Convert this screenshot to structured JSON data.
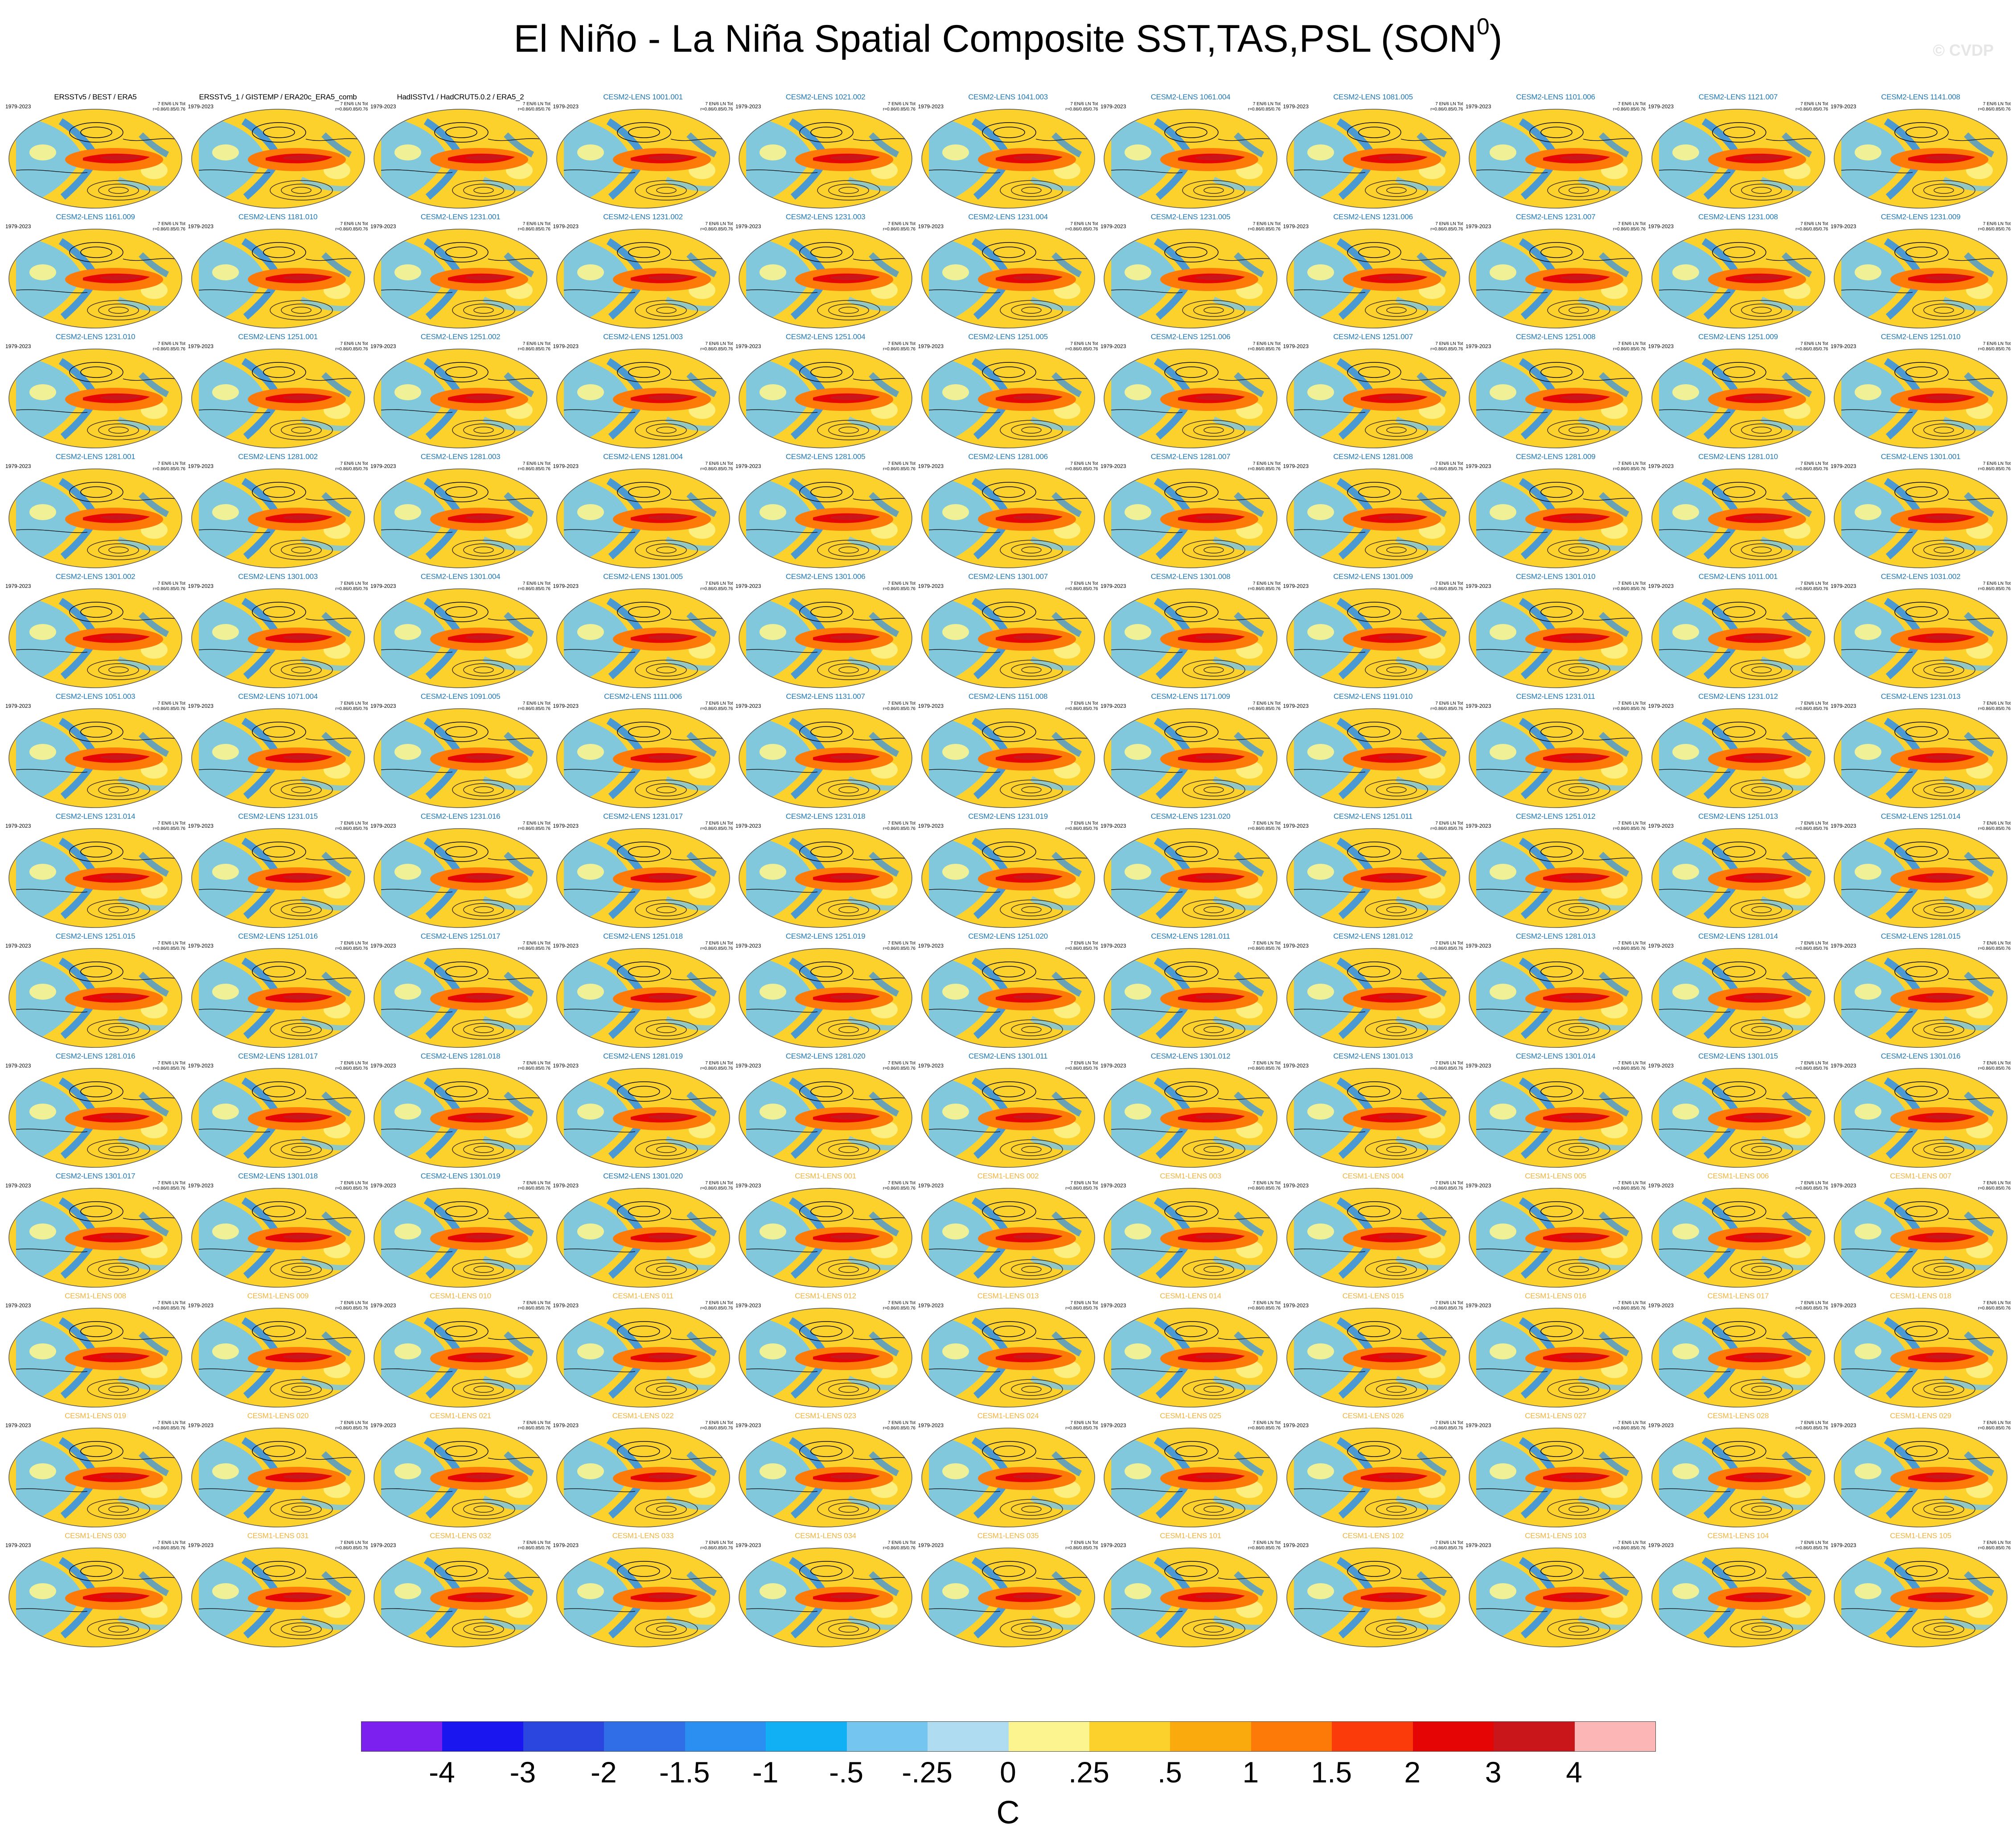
{
  "title": {
    "main": "El Niño - La Niña Spatial Composite SST,TAS,PSL (SON",
    "superscript": "0",
    "close": ")"
  },
  "watermark": "© CVDP",
  "years": "1979-2023",
  "panel_stat_line1": "7 EN/6 LN Tot",
  "panel_stat_line2": "r=0.86/0.85/0.76",
  "colors": {
    "title_obs": "#000000",
    "title_cesm2": "#1f77b4",
    "title_cesm1": "#f2b33d"
  },
  "panels": [
    {
      "title": "ERSSTv5 / BEST / ERA5",
      "group": "obs"
    },
    {
      "title": "ERSSTv5_1 / GISTEMP / ERA20c_ERA5_comb",
      "group": "obs"
    },
    {
      "title": "HadISSTv1 / HadCRUT5.0.2 / ERA5_2",
      "group": "obs"
    },
    {
      "title": "CESM2-LENS 1001.001",
      "group": "cesm2"
    },
    {
      "title": "CESM2-LENS 1021.002",
      "group": "cesm2"
    },
    {
      "title": "CESM2-LENS 1041.003",
      "group": "cesm2"
    },
    {
      "title": "CESM2-LENS 1061.004",
      "group": "cesm2"
    },
    {
      "title": "CESM2-LENS 1081.005",
      "group": "cesm2"
    },
    {
      "title": "CESM2-LENS 1101.006",
      "group": "cesm2"
    },
    {
      "title": "CESM2-LENS 1121.007",
      "group": "cesm2"
    },
    {
      "title": "CESM2-LENS 1141.008",
      "group": "cesm2"
    },
    {
      "title": "CESM2-LENS 1161.009",
      "group": "cesm2"
    },
    {
      "title": "CESM2-LENS 1181.010",
      "group": "cesm2"
    },
    {
      "title": "CESM2-LENS 1231.001",
      "group": "cesm2"
    },
    {
      "title": "CESM2-LENS 1231.002",
      "group": "cesm2"
    },
    {
      "title": "CESM2-LENS 1231.003",
      "group": "cesm2"
    },
    {
      "title": "CESM2-LENS 1231.004",
      "group": "cesm2"
    },
    {
      "title": "CESM2-LENS 1231.005",
      "group": "cesm2"
    },
    {
      "title": "CESM2-LENS 1231.006",
      "group": "cesm2"
    },
    {
      "title": "CESM2-LENS 1231.007",
      "group": "cesm2"
    },
    {
      "title": "CESM2-LENS 1231.008",
      "group": "cesm2"
    },
    {
      "title": "CESM2-LENS 1231.009",
      "group": "cesm2"
    },
    {
      "title": "CESM2-LENS 1231.010",
      "group": "cesm2"
    },
    {
      "title": "CESM2-LENS 1251.001",
      "group": "cesm2"
    },
    {
      "title": "CESM2-LENS 1251.002",
      "group": "cesm2"
    },
    {
      "title": "CESM2-LENS 1251.003",
      "group": "cesm2"
    },
    {
      "title": "CESM2-LENS 1251.004",
      "group": "cesm2"
    },
    {
      "title": "CESM2-LENS 1251.005",
      "group": "cesm2"
    },
    {
      "title": "CESM2-LENS 1251.006",
      "group": "cesm2"
    },
    {
      "title": "CESM2-LENS 1251.007",
      "group": "cesm2"
    },
    {
      "title": "CESM2-LENS 1251.008",
      "group": "cesm2"
    },
    {
      "title": "CESM2-LENS 1251.009",
      "group": "cesm2"
    },
    {
      "title": "CESM2-LENS 1251.010",
      "group": "cesm2"
    },
    {
      "title": "CESM2-LENS 1281.001",
      "group": "cesm2"
    },
    {
      "title": "CESM2-LENS 1281.002",
      "group": "cesm2"
    },
    {
      "title": "CESM2-LENS 1281.003",
      "group": "cesm2"
    },
    {
      "title": "CESM2-LENS 1281.004",
      "group": "cesm2"
    },
    {
      "title": "CESM2-LENS 1281.005",
      "group": "cesm2"
    },
    {
      "title": "CESM2-LENS 1281.006",
      "group": "cesm2"
    },
    {
      "title": "CESM2-LENS 1281.007",
      "group": "cesm2"
    },
    {
      "title": "CESM2-LENS 1281.008",
      "group": "cesm2"
    },
    {
      "title": "CESM2-LENS 1281.009",
      "group": "cesm2"
    },
    {
      "title": "CESM2-LENS 1281.010",
      "group": "cesm2"
    },
    {
      "title": "CESM2-LENS 1301.001",
      "group": "cesm2"
    },
    {
      "title": "CESM2-LENS 1301.002",
      "group": "cesm2"
    },
    {
      "title": "CESM2-LENS 1301.003",
      "group": "cesm2"
    },
    {
      "title": "CESM2-LENS 1301.004",
      "group": "cesm2"
    },
    {
      "title": "CESM2-LENS 1301.005",
      "group": "cesm2"
    },
    {
      "title": "CESM2-LENS 1301.006",
      "group": "cesm2"
    },
    {
      "title": "CESM2-LENS 1301.007",
      "group": "cesm2"
    },
    {
      "title": "CESM2-LENS 1301.008",
      "group": "cesm2"
    },
    {
      "title": "CESM2-LENS 1301.009",
      "group": "cesm2"
    },
    {
      "title": "CESM2-LENS 1301.010",
      "group": "cesm2"
    },
    {
      "title": "CESM2-LENS 1011.001",
      "group": "cesm2"
    },
    {
      "title": "CESM2-LENS 1031.002",
      "group": "cesm2"
    },
    {
      "title": "CESM2-LENS 1051.003",
      "group": "cesm2"
    },
    {
      "title": "CESM2-LENS 1071.004",
      "group": "cesm2"
    },
    {
      "title": "CESM2-LENS 1091.005",
      "group": "cesm2"
    },
    {
      "title": "CESM2-LENS 1111.006",
      "group": "cesm2"
    },
    {
      "title": "CESM2-LENS 1131.007",
      "group": "cesm2"
    },
    {
      "title": "CESM2-LENS 1151.008",
      "group": "cesm2"
    },
    {
      "title": "CESM2-LENS 1171.009",
      "group": "cesm2"
    },
    {
      "title": "CESM2-LENS 1191.010",
      "group": "cesm2"
    },
    {
      "title": "CESM2-LENS 1231.011",
      "group": "cesm2"
    },
    {
      "title": "CESM2-LENS 1231.012",
      "group": "cesm2"
    },
    {
      "title": "CESM2-LENS 1231.013",
      "group": "cesm2"
    },
    {
      "title": "CESM2-LENS 1231.014",
      "group": "cesm2"
    },
    {
      "title": "CESM2-LENS 1231.015",
      "group": "cesm2"
    },
    {
      "title": "CESM2-LENS 1231.016",
      "group": "cesm2"
    },
    {
      "title": "CESM2-LENS 1231.017",
      "group": "cesm2"
    },
    {
      "title": "CESM2-LENS 1231.018",
      "group": "cesm2"
    },
    {
      "title": "CESM2-LENS 1231.019",
      "group": "cesm2"
    },
    {
      "title": "CESM2-LENS 1231.020",
      "group": "cesm2"
    },
    {
      "title": "CESM2-LENS 1251.011",
      "group": "cesm2"
    },
    {
      "title": "CESM2-LENS 1251.012",
      "group": "cesm2"
    },
    {
      "title": "CESM2-LENS 1251.013",
      "group": "cesm2"
    },
    {
      "title": "CESM2-LENS 1251.014",
      "group": "cesm2"
    },
    {
      "title": "CESM2-LENS 1251.015",
      "group": "cesm2"
    },
    {
      "title": "CESM2-LENS 1251.016",
      "group": "cesm2"
    },
    {
      "title": "CESM2-LENS 1251.017",
      "group": "cesm2"
    },
    {
      "title": "CESM2-LENS 1251.018",
      "group": "cesm2"
    },
    {
      "title": "CESM2-LENS 1251.019",
      "group": "cesm2"
    },
    {
      "title": "CESM2-LENS 1251.020",
      "group": "cesm2"
    },
    {
      "title": "CESM2-LENS 1281.011",
      "group": "cesm2"
    },
    {
      "title": "CESM2-LENS 1281.012",
      "group": "cesm2"
    },
    {
      "title": "CESM2-LENS 1281.013",
      "group": "cesm2"
    },
    {
      "title": "CESM2-LENS 1281.014",
      "group": "cesm2"
    },
    {
      "title": "CESM2-LENS 1281.015",
      "group": "cesm2"
    },
    {
      "title": "CESM2-LENS 1281.016",
      "group": "cesm2"
    },
    {
      "title": "CESM2-LENS 1281.017",
      "group": "cesm2"
    },
    {
      "title": "CESM2-LENS 1281.018",
      "group": "cesm2"
    },
    {
      "title": "CESM2-LENS 1281.019",
      "group": "cesm2"
    },
    {
      "title": "CESM2-LENS 1281.020",
      "group": "cesm2"
    },
    {
      "title": "CESM2-LENS 1301.011",
      "group": "cesm2"
    },
    {
      "title": "CESM2-LENS 1301.012",
      "group": "cesm2"
    },
    {
      "title": "CESM2-LENS 1301.013",
      "group": "cesm2"
    },
    {
      "title": "CESM2-LENS 1301.014",
      "group": "cesm2"
    },
    {
      "title": "CESM2-LENS 1301.015",
      "group": "cesm2"
    },
    {
      "title": "CESM2-LENS 1301.016",
      "group": "cesm2"
    },
    {
      "title": "CESM2-LENS 1301.017",
      "group": "cesm2"
    },
    {
      "title": "CESM2-LENS 1301.018",
      "group": "cesm2"
    },
    {
      "title": "CESM2-LENS 1301.019",
      "group": "cesm2"
    },
    {
      "title": "CESM2-LENS 1301.020",
      "group": "cesm2"
    },
    {
      "title": "CESM1-LENS 001",
      "group": "cesm1"
    },
    {
      "title": "CESM1-LENS 002",
      "group": "cesm1"
    },
    {
      "title": "CESM1-LENS 003",
      "group": "cesm1"
    },
    {
      "title": "CESM1-LENS 004",
      "group": "cesm1"
    },
    {
      "title": "CESM1-LENS 005",
      "group": "cesm1"
    },
    {
      "title": "CESM1-LENS 006",
      "group": "cesm1"
    },
    {
      "title": "CESM1-LENS 007",
      "group": "cesm1"
    },
    {
      "title": "CESM1-LENS 008",
      "group": "cesm1"
    },
    {
      "title": "CESM1-LENS 009",
      "group": "cesm1"
    },
    {
      "title": "CESM1-LENS 010",
      "group": "cesm1"
    },
    {
      "title": "CESM1-LENS 011",
      "group": "cesm1"
    },
    {
      "title": "CESM1-LENS 012",
      "group": "cesm1"
    },
    {
      "title": "CESM1-LENS 013",
      "group": "cesm1"
    },
    {
      "title": "CESM1-LENS 014",
      "group": "cesm1"
    },
    {
      "title": "CESM1-LENS 015",
      "group": "cesm1"
    },
    {
      "title": "CESM1-LENS 016",
      "group": "cesm1"
    },
    {
      "title": "CESM1-LENS 017",
      "group": "cesm1"
    },
    {
      "title": "CESM1-LENS 018",
      "group": "cesm1"
    },
    {
      "title": "CESM1-LENS 019",
      "group": "cesm1"
    },
    {
      "title": "CESM1-LENS 020",
      "group": "cesm1"
    },
    {
      "title": "CESM1-LENS 021",
      "group": "cesm1"
    },
    {
      "title": "CESM1-LENS 022",
      "group": "cesm1"
    },
    {
      "title": "CESM1-LENS 023",
      "group": "cesm1"
    },
    {
      "title": "CESM1-LENS 024",
      "group": "cesm1"
    },
    {
      "title": "CESM1-LENS 025",
      "group": "cesm1"
    },
    {
      "title": "CESM1-LENS 026",
      "group": "cesm1"
    },
    {
      "title": "CESM1-LENS 027",
      "group": "cesm1"
    },
    {
      "title": "CESM1-LENS 028",
      "group": "cesm1"
    },
    {
      "title": "CESM1-LENS 029",
      "group": "cesm1"
    },
    {
      "title": "CESM1-LENS 030",
      "group": "cesm1"
    },
    {
      "title": "CESM1-LENS 031",
      "group": "cesm1"
    },
    {
      "title": "CESM1-LENS 032",
      "group": "cesm1"
    },
    {
      "title": "CESM1-LENS 033",
      "group": "cesm1"
    },
    {
      "title": "CESM1-LENS 034",
      "group": "cesm1"
    },
    {
      "title": "CESM1-LENS 035",
      "group": "cesm1"
    },
    {
      "title": "CESM1-LENS 101",
      "group": "cesm1"
    },
    {
      "title": "CESM1-LENS 102",
      "group": "cesm1"
    },
    {
      "title": "CESM1-LENS 103",
      "group": "cesm1"
    },
    {
      "title": "CESM1-LENS 104",
      "group": "cesm1"
    },
    {
      "title": "CESM1-LENS 105",
      "group": "cesm1"
    }
  ],
  "colorbar": {
    "unit": "C",
    "labels": [
      "-4",
      "-3",
      "-2",
      "-1.5",
      "-1",
      "-.5",
      "-.25",
      "0",
      ".25",
      ".5",
      "1",
      "1.5",
      "2",
      "3",
      "4"
    ],
    "colors": [
      "#7b20ef",
      "#1a16f0",
      "#2a46de",
      "#2f6ee6",
      "#2a8ff0",
      "#11b0f5",
      "#74c6f0",
      "#b0dcf1",
      "#fcf58f",
      "#fdd12b",
      "#fbaa0d",
      "#fd7a08",
      "#fb3c0a",
      "#e50505",
      "#c8161a",
      "#fdb6b6"
    ]
  }
}
